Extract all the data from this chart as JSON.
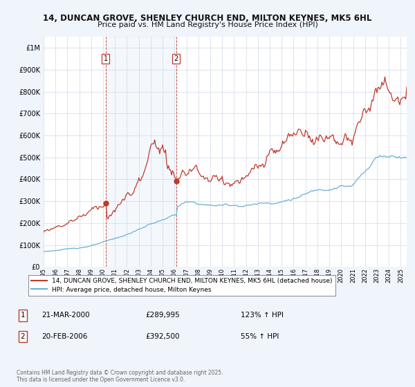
{
  "title_line1": "14, DUNCAN GROVE, SHENLEY CHURCH END, MILTON KEYNES, MK5 6HL",
  "title_line2": "Price paid vs. HM Land Registry's House Price Index (HPI)",
  "hpi_color": "#6baed6",
  "price_color": "#c0392b",
  "vline_color": "#c0392b",
  "background_color": "#f0f4fb",
  "plot_bg_color": "#ffffff",
  "grid_color": "#d0d8e8",
  "ylim": [
    0,
    1050000
  ],
  "yticks": [
    0,
    100000,
    200000,
    300000,
    400000,
    500000,
    600000,
    700000,
    800000,
    900000,
    1000000
  ],
  "ytick_labels": [
    "£0",
    "£100K",
    "£200K",
    "£300K",
    "£400K",
    "£500K",
    "£600K",
    "£700K",
    "£800K",
    "£900K",
    "£1M"
  ],
  "purchase1_date": 2000.22,
  "purchase1_price": 289995,
  "purchase2_date": 2006.13,
  "purchase2_price": 392500,
  "legend_label_price": "14, DUNCAN GROVE, SHENLEY CHURCH END, MILTON KEYNES, MK5 6HL (detached house)",
  "legend_label_hpi": "HPI: Average price, detached house, Milton Keynes",
  "table_row1": [
    "1",
    "21-MAR-2000",
    "£289,995",
    "123% ↑ HPI"
  ],
  "table_row2": [
    "2",
    "20-FEB-2006",
    "£392,500",
    "55% ↑ HPI"
  ],
  "copyright_text": "Contains HM Land Registry data © Crown copyright and database right 2025.\nThis data is licensed under the Open Government Licence v3.0.",
  "xlim_start": 1995.0,
  "xlim_end": 2025.5,
  "span_color": "#c6d9f0"
}
